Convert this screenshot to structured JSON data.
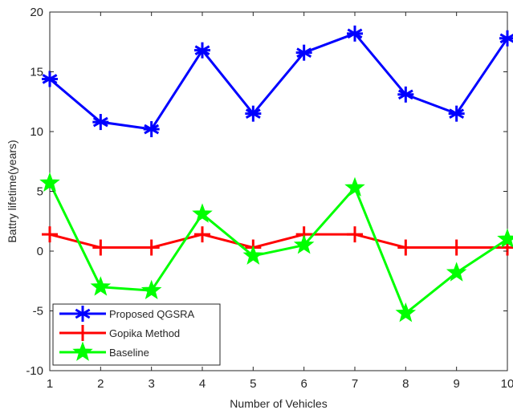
{
  "chart_data": {
    "type": "line",
    "title": "",
    "xlabel": "Number of Vehicles",
    "ylabel": "Battry lifetime(years)",
    "x": [
      1,
      2,
      3,
      4,
      5,
      6,
      7,
      8,
      9,
      10
    ],
    "xlim": [
      1,
      10
    ],
    "ylim": [
      -10,
      20
    ],
    "xticks": [
      1,
      2,
      3,
      4,
      5,
      6,
      7,
      8,
      9,
      10
    ],
    "yticks": [
      -10,
      -5,
      0,
      5,
      10,
      15,
      20
    ],
    "grid": false,
    "legend_position": "bottom-left",
    "series": [
      {
        "name": "Proposed QGSRA",
        "color": "#0000ff",
        "marker": "asterisk",
        "values": [
          14.4,
          10.8,
          10.2,
          16.8,
          11.5,
          16.6,
          18.2,
          13.1,
          11.5,
          17.8
        ]
      },
      {
        "name": "Gopika Method",
        "color": "#ff0000",
        "marker": "plus",
        "values": [
          1.4,
          0.3,
          0.3,
          1.4,
          0.3,
          1.4,
          1.4,
          0.3,
          0.3,
          0.3
        ]
      },
      {
        "name": "Baseline",
        "color": "#00ff00",
        "marker": "star",
        "values": [
          5.7,
          -3.0,
          -3.3,
          3.1,
          -0.4,
          0.5,
          5.3,
          -5.2,
          -1.8,
          1.0
        ]
      }
    ]
  }
}
